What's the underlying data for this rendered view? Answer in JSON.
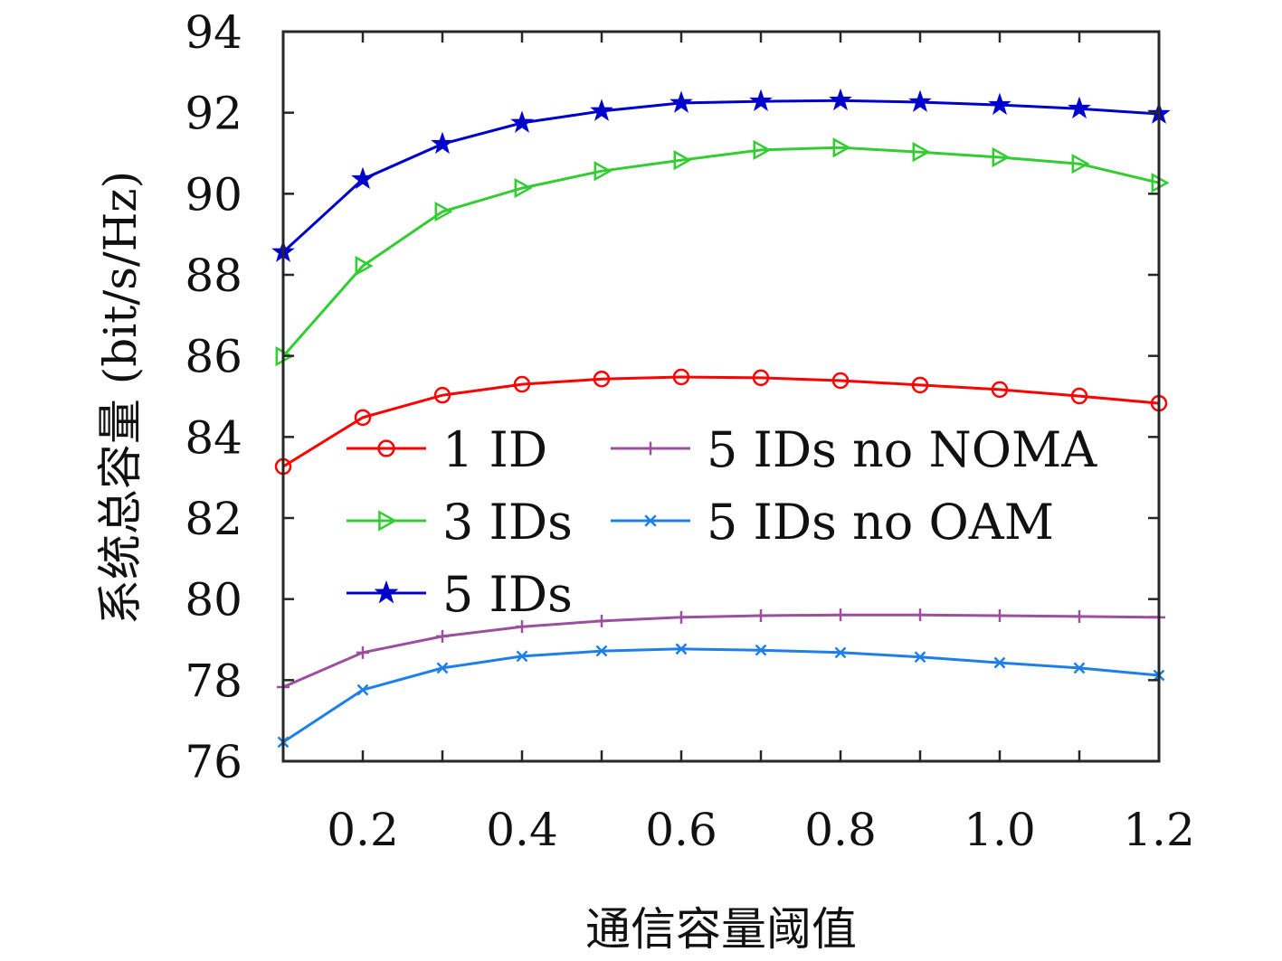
{
  "chart_data": {
    "type": "line",
    "title": "",
    "xlabel": "通信容量阈值",
    "ylabel": "系统总容量 (bit/s/Hz)",
    "xlim": [
      0.1,
      1.2
    ],
    "ylim": [
      76,
      94
    ],
    "xticks": [
      0.1,
      0.2,
      0.3,
      0.4,
      0.5,
      0.6,
      0.7,
      0.8,
      0.9,
      1.0,
      1.1,
      1.2
    ],
    "xtick_labels": [
      "",
      "0.2",
      "",
      "0.4",
      "",
      "0.6",
      "",
      "0.8",
      "",
      "1.0",
      "",
      "1.2"
    ],
    "yticks": [
      76,
      78,
      80,
      82,
      84,
      86,
      88,
      90,
      92,
      94
    ],
    "ytick_labels": [
      "76",
      "78",
      "80",
      "82",
      "84",
      "86",
      "88",
      "90",
      "92",
      "94"
    ],
    "grid": false,
    "legend_placement": "center",
    "x": [
      0.1,
      0.2,
      0.3,
      0.4,
      0.5,
      0.6,
      0.7,
      0.8,
      0.9,
      1.0,
      1.1,
      1.2
    ],
    "series": [
      {
        "name": "1 ID",
        "color": "#ff0000",
        "marker": "circle",
        "values": [
          83.27,
          84.48,
          85.03,
          85.3,
          85.43,
          85.48,
          85.46,
          85.39,
          85.28,
          85.17,
          85.01,
          84.83
        ]
      },
      {
        "name": "3 IDs",
        "color": "#33cc33",
        "marker": "triangle-right",
        "values": [
          85.99,
          88.22,
          89.56,
          90.14,
          90.56,
          90.83,
          91.08,
          91.14,
          91.03,
          90.9,
          90.74,
          90.27
        ]
      },
      {
        "name": "5 IDs",
        "color": "#0000cc",
        "marker": "star",
        "values": [
          88.56,
          90.36,
          91.23,
          91.75,
          92.04,
          92.24,
          92.28,
          92.3,
          92.26,
          92.19,
          92.1,
          91.97
        ]
      },
      {
        "name": "5 IDs no NOMA",
        "color": "#9b4f9e",
        "marker": "plus",
        "values": [
          77.83,
          78.68,
          79.08,
          79.32,
          79.46,
          79.55,
          79.59,
          79.61,
          79.61,
          79.59,
          79.57,
          79.55
        ]
      },
      {
        "name": "5 IDs no OAM",
        "color": "#1e7fe8",
        "marker": "x",
        "values": [
          76.47,
          77.76,
          78.3,
          78.59,
          78.72,
          78.77,
          78.74,
          78.68,
          78.57,
          78.43,
          78.3,
          78.12
        ]
      }
    ]
  }
}
